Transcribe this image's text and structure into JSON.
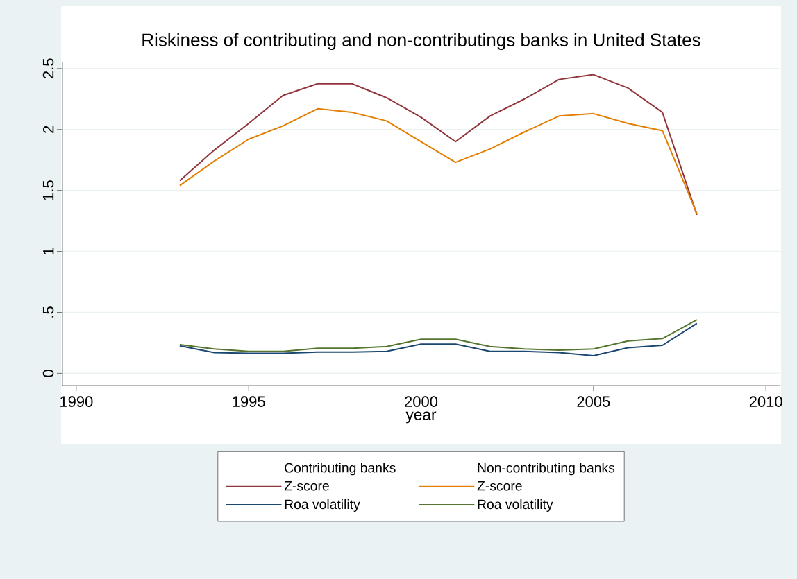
{
  "chart_data": {
    "type": "line",
    "title": "Riskiness of contributing and non-contributings banks in United States",
    "xlabel": "year",
    "x": [
      1993,
      1994,
      1995,
      1996,
      1997,
      1998,
      1999,
      2000,
      2001,
      2002,
      2003,
      2004,
      2005,
      2006,
      2007,
      2008
    ],
    "series": [
      {
        "name": "Z-score",
        "color": "#90353b",
        "values": [
          1.58,
          1.83,
          2.05,
          2.28,
          2.375,
          2.375,
          2.26,
          2.1,
          1.9,
          2.11,
          2.25,
          2.41,
          2.45,
          2.34,
          2.14,
          1.3
        ]
      },
      {
        "name": "Roa volatility",
        "color": "#1a476f",
        "values": [
          0.225,
          0.17,
          0.165,
          0.165,
          0.175,
          0.175,
          0.18,
          0.24,
          0.24,
          0.18,
          0.18,
          0.17,
          0.145,
          0.21,
          0.23,
          0.41
        ]
      },
      {
        "name": "Z-score",
        "color": "#e37e00",
        "values": [
          1.54,
          1.74,
          1.92,
          2.03,
          2.17,
          2.14,
          2.07,
          1.9,
          1.73,
          1.84,
          1.98,
          2.11,
          2.13,
          2.05,
          1.99,
          1.31
        ]
      },
      {
        "name": "Roa volatility",
        "color": "#55752f",
        "values": [
          0.235,
          0.2,
          0.18,
          0.18,
          0.205,
          0.205,
          0.22,
          0.28,
          0.28,
          0.22,
          0.2,
          0.19,
          0.2,
          0.265,
          0.285,
          0.44
        ]
      }
    ],
    "annotations": [
      "Contributing banks",
      "Non-contributing banks"
    ],
    "xlim": [
      1989.6,
      2010.4
    ],
    "xticks": [
      1990,
      1995,
      2000,
      2005,
      2010
    ],
    "ylim": [
      -0.1,
      2.55
    ],
    "yticks": [
      0,
      {
        "value": 0.5,
        "label": ".5"
      },
      1,
      1.5,
      2,
      2.5
    ],
    "grid": "y",
    "legend": "bottom",
    "marker": "none",
    "line_style": "solid"
  }
}
